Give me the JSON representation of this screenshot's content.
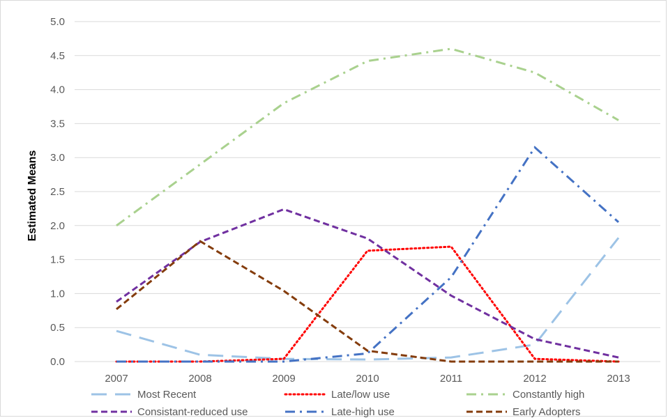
{
  "chart_data": {
    "type": "line",
    "title": "",
    "xlabel": "",
    "ylabel": "Estimated Means",
    "categories": [
      "2007",
      "2008",
      "2009",
      "2010",
      "2011",
      "2012",
      "2013"
    ],
    "ylim": [
      0,
      5
    ],
    "yticks": [
      "0.0",
      "0.5",
      "1.0",
      "1.5",
      "2.0",
      "2.5",
      "3.0",
      "3.5",
      "4.0",
      "4.5",
      "5.0"
    ],
    "grid": true,
    "legend_position": "bottom",
    "series": [
      {
        "name": "Most Recent",
        "color": "#9dc3e6",
        "dash": "long-dash",
        "values": [
          0.45,
          0.1,
          0.04,
          0.03,
          0.06,
          0.25,
          1.82
        ]
      },
      {
        "name": "Late/low use",
        "color": "#ff0000",
        "dash": "dot",
        "values": [
          0.0,
          0.0,
          0.04,
          1.63,
          1.69,
          0.04,
          0.0
        ]
      },
      {
        "name": "Constantly high",
        "color": "#a9d18e",
        "dash": "dash-dot",
        "values": [
          2.0,
          2.9,
          3.8,
          4.42,
          4.6,
          4.25,
          3.55
        ]
      },
      {
        "name": "Consistant-reduced use",
        "color": "#7030a0",
        "dash": "dash",
        "values": [
          0.88,
          1.76,
          2.24,
          1.81,
          0.97,
          0.33,
          0.06
        ]
      },
      {
        "name": "Late-high use",
        "color": "#4472c4",
        "dash": "dash-dot",
        "values": [
          0.0,
          0.0,
          0.0,
          0.12,
          1.24,
          3.15,
          2.05
        ]
      },
      {
        "name": "Early Adopters",
        "color": "#843c0c",
        "dash": "dash",
        "values": [
          0.77,
          1.77,
          1.04,
          0.16,
          0.0,
          0.0,
          0.0
        ]
      }
    ]
  }
}
